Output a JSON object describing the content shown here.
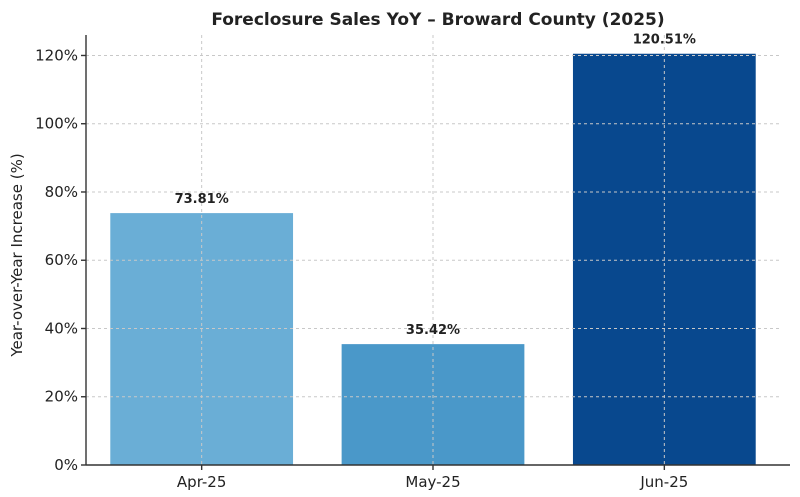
{
  "chart_data": {
    "type": "bar",
    "title": "Foreclosure Sales YoY – Broward County (2025)",
    "xlabel": "",
    "ylabel": "Year-over-Year Increase (%)",
    "categories": [
      "Apr-25",
      "May-25",
      "Jun-25"
    ],
    "values": [
      73.81,
      35.42,
      120.51
    ],
    "value_labels": [
      "73.81%",
      "35.42%",
      "120.51%"
    ],
    "bar_colors": [
      "#6aaed6",
      "#4a98c9",
      "#08488e"
    ],
    "ylim": [
      0,
      126
    ],
    "yticks": [
      0,
      20,
      40,
      60,
      80,
      100,
      120
    ],
    "ytick_labels": [
      "0%",
      "20%",
      "40%",
      "60%",
      "80%",
      "100%",
      "120%"
    ],
    "grid": true,
    "legend": "none"
  }
}
